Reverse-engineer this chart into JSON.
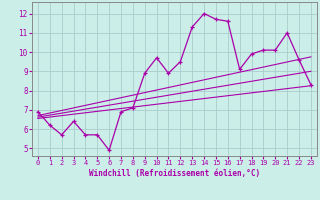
{
  "xlabel": "Windchill (Refroidissement éolien,°C)",
  "bg_color": "#cceee8",
  "grid_color": "#aacccc",
  "line_color": "#aa00aa",
  "spine_color": "#888888",
  "x_ticks": [
    0,
    1,
    2,
    3,
    4,
    5,
    6,
    7,
    8,
    9,
    10,
    11,
    12,
    13,
    14,
    15,
    16,
    17,
    18,
    19,
    20,
    21,
    22,
    23
  ],
  "y_ticks": [
    5,
    6,
    7,
    8,
    9,
    10,
    11,
    12
  ],
  "ylim": [
    4.6,
    12.6
  ],
  "xlim": [
    -0.5,
    23.5
  ],
  "data_x": [
    0,
    1,
    2,
    3,
    4,
    5,
    6,
    7,
    8,
    9,
    10,
    11,
    12,
    13,
    14,
    15,
    16,
    17,
    18,
    19,
    20,
    21,
    22,
    23
  ],
  "data_y": [
    6.9,
    6.2,
    5.7,
    6.4,
    5.7,
    5.7,
    4.9,
    6.9,
    7.1,
    8.9,
    9.7,
    8.9,
    9.5,
    11.3,
    12.0,
    11.7,
    11.6,
    9.1,
    9.9,
    10.1,
    10.1,
    11.0,
    9.6,
    8.3
  ],
  "trend1_x": [
    0,
    23
  ],
  "trend1_y": [
    6.55,
    8.25
  ],
  "trend2_x": [
    0,
    23
  ],
  "trend2_y": [
    6.7,
    9.75
  ],
  "trend3_x": [
    0,
    23
  ],
  "trend3_y": [
    6.62,
    9.0
  ],
  "xlabel_fontsize": 5.5,
  "tick_fontsize_x": 5.0,
  "tick_fontsize_y": 5.5
}
